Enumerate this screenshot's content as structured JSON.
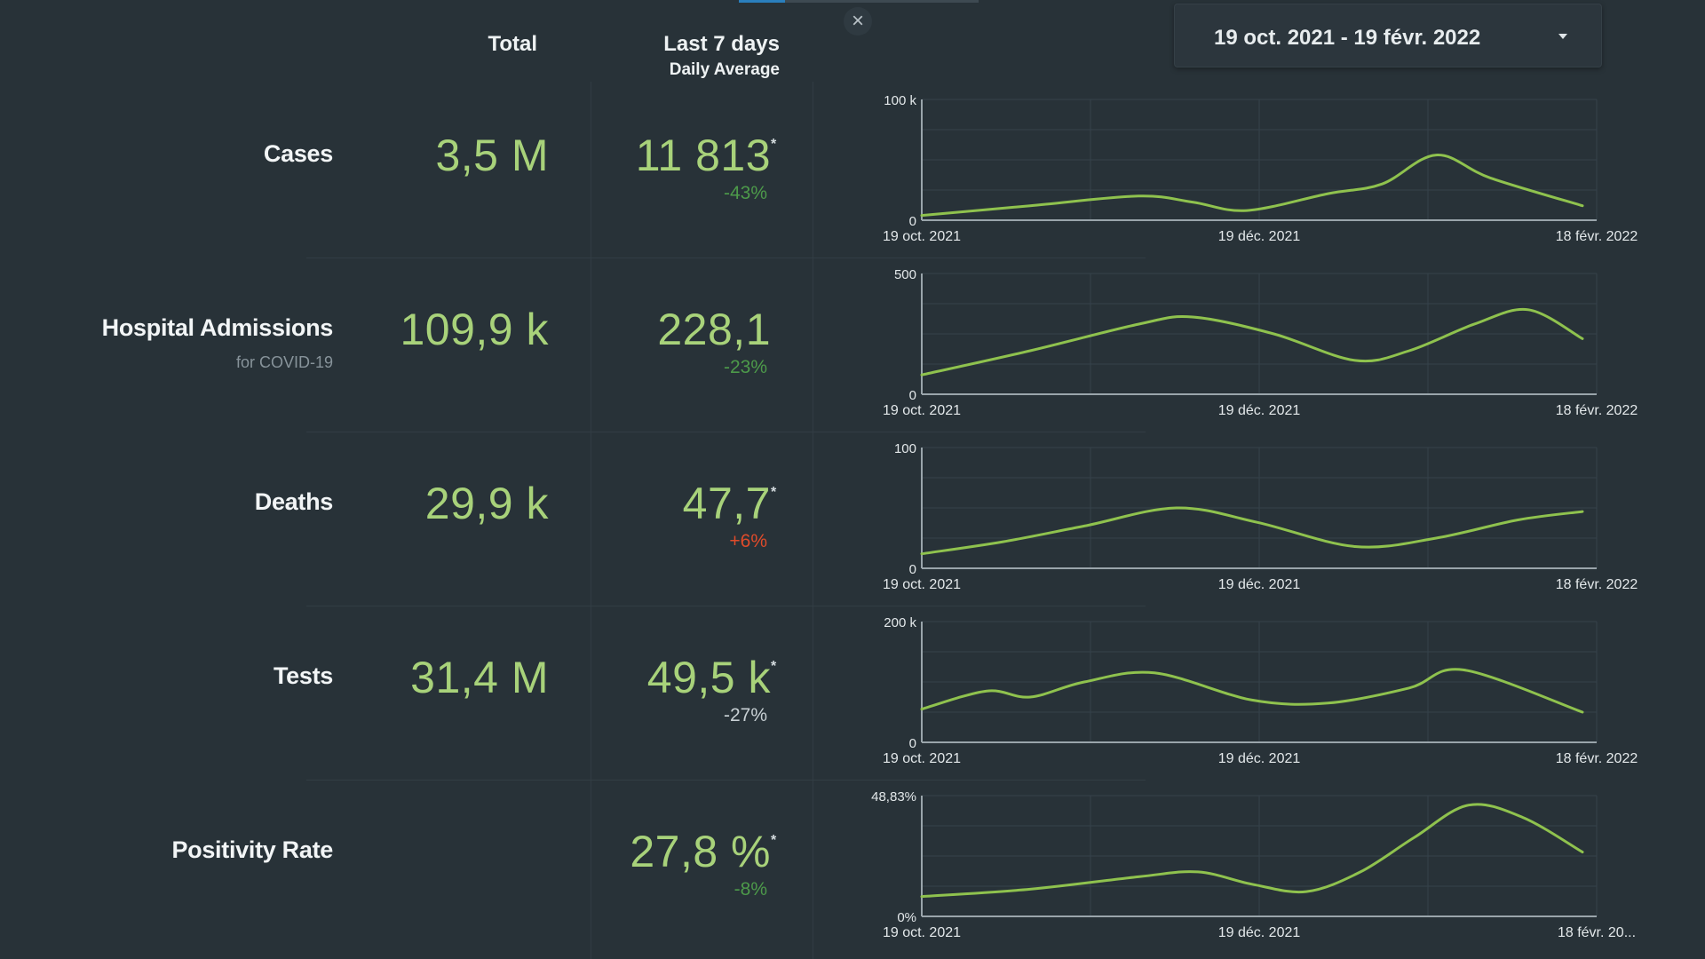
{
  "date_range": {
    "label": "19 oct. 2021 - 19 févr. 2022"
  },
  "columns": {
    "total": "Total",
    "last7": "Last 7 days",
    "last7_sub": "Daily Average"
  },
  "icons": {
    "close": "close-icon",
    "caret": "caret-down-icon"
  },
  "colors": {
    "line": "#8fc24e",
    "value": "#a8d27a",
    "down": "#4d9a4a",
    "up": "#e04b2a",
    "background": "#283238"
  },
  "rows": [
    {
      "label": "Cases",
      "sub": "",
      "total": "3,5 M",
      "avg": "11 813",
      "star": "*",
      "pct": "-43%",
      "pct_dir": "down"
    },
    {
      "label": "Hospital Admissions",
      "sub": "for COVID-19",
      "total": "109,9 k",
      "avg": "228,1",
      "star": "",
      "pct": "-23%",
      "pct_dir": "down"
    },
    {
      "label": "Deaths",
      "sub": "",
      "total": "29,9 k",
      "avg": "47,7",
      "star": "*",
      "pct": "+6%",
      "pct_dir": "up"
    },
    {
      "label": "Tests",
      "sub": "",
      "total": "31,4 M",
      "avg": "49,5 k",
      "star": "*",
      "pct": "-27%",
      "pct_dir": "neutral"
    },
    {
      "label": "Positivity Rate",
      "sub": "",
      "total": "",
      "avg": "27,8 %",
      "star": "*",
      "pct": "-8%",
      "pct_dir": "down"
    }
  ],
  "chart_data": [
    {
      "type": "line",
      "y_top_label": "100 k",
      "y_bottom_label": "0",
      "ylim": [
        0,
        100000
      ],
      "x_tick_labels": [
        "19 oct. 2021",
        "19 déc. 2021",
        "18 févr. 2022"
      ],
      "x": [
        "2021-10-19",
        "2021-11-08",
        "2021-11-28",
        "2021-12-08",
        "2021-12-18",
        "2022-01-02",
        "2022-01-12",
        "2022-01-22",
        "2022-02-01",
        "2022-02-18"
      ],
      "values": [
        4000,
        12000,
        20000,
        15000,
        8000,
        22000,
        30000,
        54000,
        35000,
        12000
      ]
    },
    {
      "type": "line",
      "y_top_label": "500",
      "y_bottom_label": "0",
      "ylim": [
        0,
        500
      ],
      "x_tick_labels": [
        "19 oct. 2021",
        "19 déc. 2021",
        "18 févr. 2022"
      ],
      "x": [
        "2021-10-19",
        "2021-11-08",
        "2021-11-28",
        "2021-12-08",
        "2021-12-23",
        "2022-01-07",
        "2022-01-17",
        "2022-01-29",
        "2022-02-08",
        "2022-02-18"
      ],
      "values": [
        80,
        180,
        290,
        320,
        250,
        140,
        180,
        290,
        350,
        230
      ]
    },
    {
      "type": "line",
      "y_top_label": "100",
      "y_bottom_label": "0",
      "ylim": [
        0,
        100
      ],
      "x_tick_labels": [
        "19 oct. 2021",
        "19 déc. 2021",
        "18 févr. 2022"
      ],
      "x": [
        "2021-10-19",
        "2021-11-03",
        "2021-11-18",
        "2021-12-05",
        "2021-12-20",
        "2022-01-07",
        "2022-01-22",
        "2022-02-06",
        "2022-02-18"
      ],
      "values": [
        12,
        22,
        35,
        50,
        38,
        18,
        25,
        40,
        47
      ]
    },
    {
      "type": "line",
      "y_top_label": "200 k",
      "y_bottom_label": "0",
      "ylim": [
        0,
        200000
      ],
      "x_tick_labels": [
        "19 oct. 2021",
        "19 déc. 2021",
        "18 févr. 2022"
      ],
      "x": [
        "2021-10-19",
        "2021-10-31",
        "2021-11-08",
        "2021-11-18",
        "2021-12-01",
        "2021-12-19",
        "2022-01-02",
        "2022-01-17",
        "2022-01-27",
        "2022-02-18"
      ],
      "values": [
        55000,
        85000,
        75000,
        100000,
        115000,
        70000,
        65000,
        90000,
        120000,
        50000
      ]
    },
    {
      "type": "line",
      "y_top_label": "48,83%",
      "y_bottom_label": "0%",
      "ylim": [
        0,
        48.83
      ],
      "x_tick_labels": [
        "19 oct. 2021",
        "19 déc. 2021",
        "18 févr. 20..."
      ],
      "x": [
        "2021-10-19",
        "2021-11-08",
        "2021-11-28",
        "2021-12-09",
        "2021-12-19",
        "2021-12-29",
        "2022-01-08",
        "2022-01-18",
        "2022-01-28",
        "2022-02-07",
        "2022-02-18"
      ],
      "values": [
        8,
        11,
        16,
        18,
        13,
        10,
        18,
        32,
        45,
        40,
        26
      ]
    }
  ]
}
